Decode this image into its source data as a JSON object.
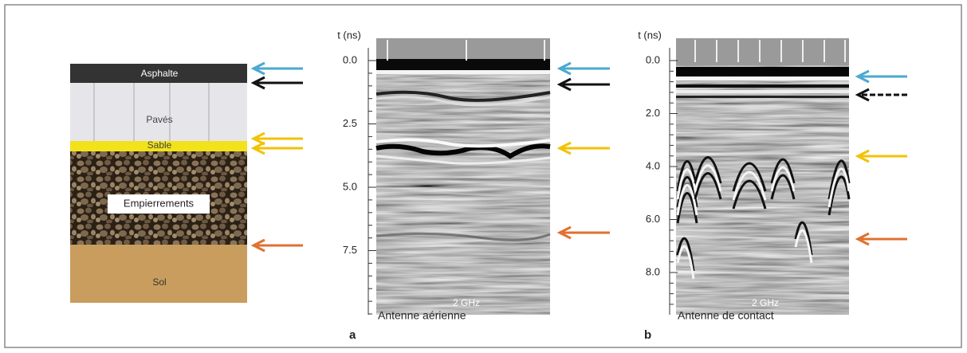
{
  "layers": [
    {
      "label": "Asphalte"
    },
    {
      "label": "Pavés"
    },
    {
      "label": "Sable"
    },
    {
      "label": "Empierrements"
    },
    {
      "label": "Sol"
    }
  ],
  "panels": [
    {
      "axis_label": "t (ns)",
      "ticks": [
        "0.0",
        "2.5",
        "5.0",
        "7.5"
      ],
      "frequency": "2 GHz",
      "caption": "Antenne aérienne",
      "letter": "a"
    },
    {
      "axis_label": "t (ns)",
      "ticks": [
        "0.0",
        "2.0",
        "4.0",
        "6.0",
        "8.0"
      ],
      "frequency": "2 GHz",
      "caption": "Antenne de contact",
      "letter": "b"
    }
  ]
}
